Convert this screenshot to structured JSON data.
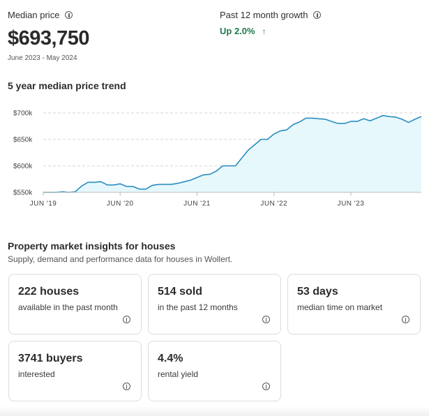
{
  "median": {
    "label": "Median price",
    "value": "$693,750",
    "period": "June 2023 - May 2024",
    "info_icon": "info-icon"
  },
  "growth": {
    "label": "Past 12 month growth",
    "value": "Up 2.0%",
    "arrow": "↑",
    "color": "#1f7a4d",
    "info_icon": "info-icon"
  },
  "trend": {
    "title": "5 year median price trend"
  },
  "chart_data": {
    "type": "area",
    "title": "5 year median price trend",
    "xlabel": "",
    "ylabel": "",
    "x_tick_labels": [
      "JUN '19",
      "JUN '20",
      "JUN '21",
      "JUN '22",
      "JUN '23"
    ],
    "y_tick_labels": [
      "$550k",
      "$600k",
      "$650k",
      "$700k"
    ],
    "y_ticks": [
      550000,
      600000,
      650000,
      700000
    ],
    "ylim": [
      550000,
      700000
    ],
    "grid": "horizontal dashed",
    "line_color": "#2a8cc0",
    "fill_color": "#e6f8fc",
    "series": [
      {
        "x": [
          "2019-06",
          "2019-07",
          "2019-08",
          "2019-09",
          "2019-10",
          "2019-11",
          "2019-12",
          "2020-01",
          "2020-02",
          "2020-03",
          "2020-04",
          "2020-05",
          "2020-06",
          "2020-07",
          "2020-08",
          "2020-09",
          "2020-10",
          "2020-11",
          "2020-12",
          "2021-01",
          "2021-02",
          "2021-03",
          "2021-04",
          "2021-05",
          "2021-06",
          "2021-07",
          "2021-08",
          "2021-09",
          "2021-10",
          "2021-11",
          "2021-12",
          "2022-01",
          "2022-02",
          "2022-03",
          "2022-04",
          "2022-05",
          "2022-06",
          "2022-07",
          "2022-08",
          "2022-09",
          "2022-10",
          "2022-11",
          "2022-12",
          "2023-01",
          "2023-02",
          "2023-03",
          "2023-04",
          "2023-05",
          "2023-06",
          "2023-07",
          "2023-08",
          "2023-09",
          "2023-10",
          "2023-11",
          "2023-12",
          "2024-01",
          "2024-02",
          "2024-03",
          "2024-04",
          "2024-05"
        ],
        "values": [
          550000,
          550000,
          550000,
          551000,
          550000,
          551000,
          562000,
          569000,
          569000,
          570000,
          564000,
          564000,
          566000,
          561000,
          561000,
          556000,
          556000,
          563000,
          565000,
          565000,
          565000,
          567000,
          570000,
          573000,
          578000,
          583000,
          584000,
          590000,
          600000,
          600000,
          600000,
          615000,
          630000,
          640000,
          650000,
          650000,
          660000,
          666000,
          668000,
          678000,
          683000,
          690000,
          690000,
          689000,
          688000,
          684000,
          680000,
          680000,
          684000,
          684000,
          689000,
          685000,
          690000,
          695000,
          693000,
          692000,
          688000,
          682000,
          688000,
          693000
        ]
      }
    ]
  },
  "insights": {
    "title": "Property market insights for houses",
    "subtitle": "Supply, demand and performance data for houses in Wollert.",
    "cards": [
      {
        "value": "222 houses",
        "sub": "available in the past month"
      },
      {
        "value": "514 sold",
        "sub": "in the past 12 months"
      },
      {
        "value": "53 days",
        "sub": "median time on market"
      },
      {
        "value": "3741 buyers",
        "sub": "interested"
      },
      {
        "value": "4.4%",
        "sub": "rental yield"
      }
    ]
  }
}
